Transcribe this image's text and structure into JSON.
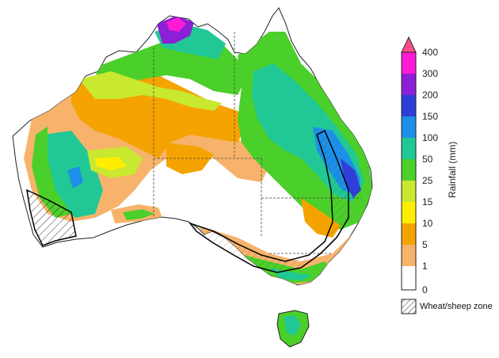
{
  "map": {
    "region": "Australia",
    "colors": {
      "land_none": "#ffffff",
      "r1_5": "#f7b36b",
      "r5_10": "#f5a300",
      "r10_15": "#ffee00",
      "r15_25": "#c9e830",
      "r25_50": "#4bcf2a",
      "r50_100": "#21c895",
      "r100_150": "#1d8fe6",
      "r150_200": "#2e3ed6",
      "r200_300": "#8d1fd6",
      "r300_400": "#ff1bd6",
      "r_over_400": "#ff4f8a",
      "boundary": "#222222",
      "wheat_sheep_line": "#000000"
    }
  },
  "legend": {
    "title": "Rainfall (mm)",
    "ticks": [
      "400",
      "300",
      "200",
      "150",
      "100",
      "50",
      "25",
      "15",
      "10",
      "5",
      "1",
      "0"
    ],
    "zone_label": "Wheat/sheep zone"
  }
}
